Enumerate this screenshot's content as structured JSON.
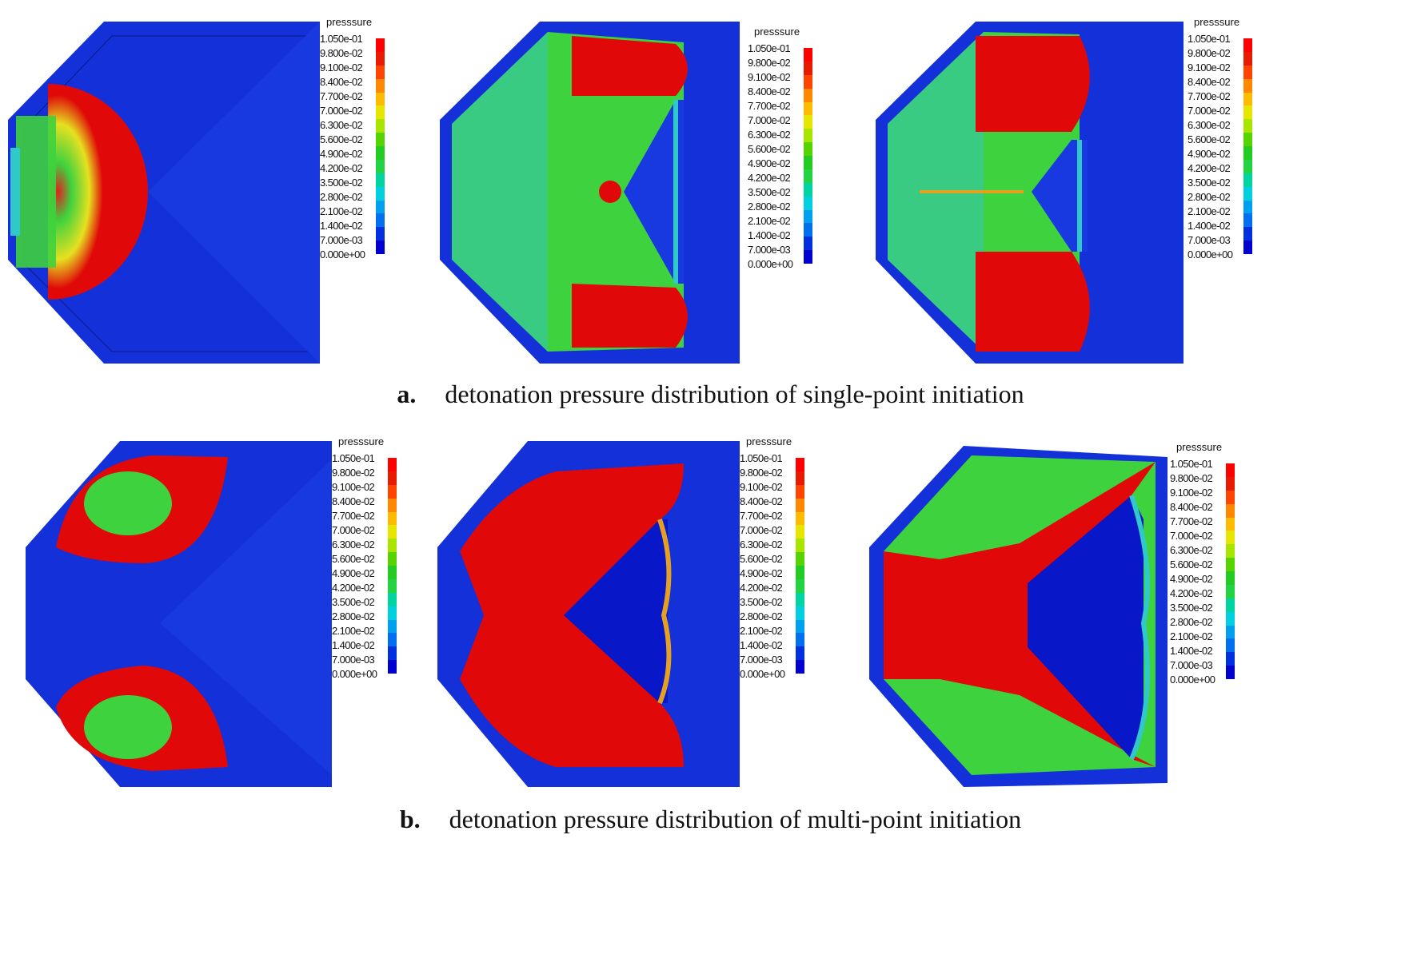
{
  "legend": {
    "title": "presssure",
    "ticks": [
      "1.050e-01",
      "9.800e-02",
      "9.100e-02",
      "8.400e-02",
      "7.700e-02",
      "7.000e-02",
      "6.300e-02",
      "5.600e-02",
      "4.900e-02",
      "4.200e-02",
      "3.500e-02",
      "2.800e-02",
      "2.100e-02",
      "1.400e-02",
      "7.000e-03",
      "0.000e+00"
    ],
    "colors": [
      "#ff0000",
      "#e81a00",
      "#ff4400",
      "#ff8800",
      "#ffbb00",
      "#e6e600",
      "#a8e600",
      "#55d400",
      "#22cc22",
      "#22d444",
      "#00d4a0",
      "#00d0e0",
      "#00a0f0",
      "#0070f0",
      "#0030e0",
      "#0000d0"
    ]
  },
  "colors": {
    "background": "#1430d8",
    "red": "#e00808",
    "green": "#3ed23e",
    "cyan": "#30c8c8",
    "yellow": "#d8d820",
    "dark_blue": "#0818c8"
  },
  "captions": {
    "a_label": "a.",
    "a_text": "detonation pressure distribution of single-point initiation",
    "b_label": "b.",
    "b_text": "detonation pressure distribution of multi-point initiation"
  }
}
